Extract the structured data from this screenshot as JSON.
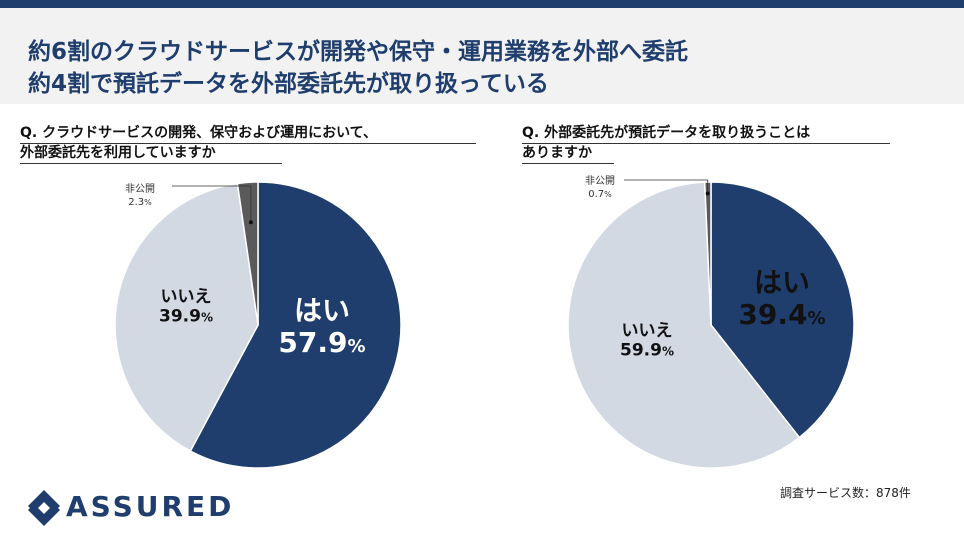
{
  "title": {
    "line1": "約6割のクラウドサービスが開発や保守・運用業務を外部へ委託",
    "line2": "約4割で預託データを外部委託先が取り扱っている"
  },
  "colors": {
    "accent": "#1f3e6e",
    "yes": "#1f3e6e",
    "no": "#d3d9e3",
    "undisclosed": "#5a5a5a"
  },
  "chart_data": [
    {
      "type": "pie",
      "title": "Q. クラウドサービスの開発、保守および運用において、外部委託先を利用していますか",
      "title_lines": [
        "Q. クラウドサービスの開発、保守および運用において、",
        "外部委託先を利用していますか"
      ],
      "categories": [
        "はい",
        "いいえ",
        "非公開"
      ],
      "values": [
        57.9,
        39.9,
        2.3
      ],
      "value_labels": [
        "57.9",
        "39.9",
        "2.3"
      ],
      "unit": "%"
    },
    {
      "type": "pie",
      "title": "Q. 外部委託先が預託データを取り扱うことはありますか",
      "title_lines": [
        "Q. 外部委託先が預託データを取り扱うことは",
        "ありますか"
      ],
      "categories": [
        "はい",
        "いいえ",
        "非公開"
      ],
      "values": [
        39.4,
        59.9,
        0.7
      ],
      "value_labels": [
        "39.4",
        "59.9",
        "0.7"
      ],
      "unit": "%"
    }
  ],
  "footer": {
    "logo_text": "ASSURED",
    "note": "調査サービス数：878件"
  }
}
